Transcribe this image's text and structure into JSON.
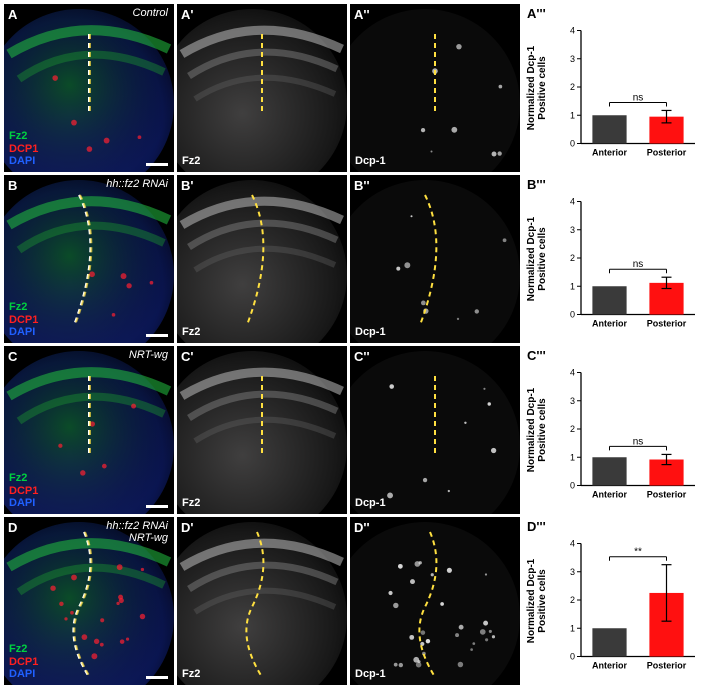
{
  "rows": [
    {
      "panels": [
        {
          "letter": "A",
          "genotype": "Control",
          "labels": [
            {
              "text": "Fz2",
              "color": "#00d040"
            },
            {
              "text": "DCP1",
              "color": "#ff2020"
            },
            {
              "text": "DAPI",
              "color": "#2060ff"
            }
          ],
          "scalebar": true,
          "color": true
        },
        {
          "letter": "A'",
          "bl": "Fz2",
          "color": false
        },
        {
          "letter": "A''",
          "bl": "Dcp-1",
          "color": false
        }
      ],
      "chart": {
        "letter": "A'''",
        "type": "bar",
        "ylabel": "Normalized Dcp-1\nPositive cells",
        "ylim": [
          0,
          4
        ],
        "ytick_step": 1,
        "categories": [
          "Anterior",
          "Posterior"
        ],
        "bars": [
          {
            "value": 1.0,
            "err": 0,
            "color": "#3a3a3a"
          },
          {
            "value": 0.95,
            "err": 0.22,
            "color": "#ff1010"
          }
        ],
        "sig": "ns",
        "bar_width": 0.6,
        "label_fontsize": 9,
        "tick_fontsize": 9
      },
      "boundary_x": 85
    },
    {
      "panels": [
        {
          "letter": "B",
          "genotype": "hh::fz2 RNAi",
          "labels": [
            {
              "text": "Fz2",
              "color": "#00d040"
            },
            {
              "text": "DCP1",
              "color": "#ff2020"
            },
            {
              "text": "DAPI",
              "color": "#2060ff"
            }
          ],
          "scalebar": true,
          "color": true
        },
        {
          "letter": "B'",
          "bl": "Fz2",
          "color": false
        },
        {
          "letter": "B''",
          "bl": "Dcp-1",
          "color": false
        }
      ],
      "chart": {
        "letter": "B'''",
        "type": "bar",
        "ylabel": "Normalized Dcp-1\nPositive cells",
        "ylim": [
          0,
          4
        ],
        "ytick_step": 1,
        "categories": [
          "Anterior",
          "Posterior"
        ],
        "bars": [
          {
            "value": 1.0,
            "err": 0,
            "color": "#3a3a3a"
          },
          {
            "value": 1.12,
            "err": 0.2,
            "color": "#ff1010"
          }
        ],
        "sig": "ns",
        "bar_width": 0.6,
        "label_fontsize": 9,
        "tick_fontsize": 9
      },
      "boundary_curved": true
    },
    {
      "panels": [
        {
          "letter": "C",
          "genotype": "NRT-wg",
          "labels": [
            {
              "text": "Fz2",
              "color": "#00d040"
            },
            {
              "text": "DCP1",
              "color": "#ff2020"
            },
            {
              "text": "DAPI",
              "color": "#2060ff"
            }
          ],
          "scalebar": true,
          "color": true
        },
        {
          "letter": "C'",
          "bl": "Fz2",
          "color": false
        },
        {
          "letter": "C''",
          "bl": "Dcp-1",
          "color": false
        }
      ],
      "chart": {
        "letter": "C'''",
        "type": "bar",
        "ylabel": "Normalized Dcp-1\nPositive cells",
        "ylim": [
          0,
          4
        ],
        "ytick_step": 1,
        "categories": [
          "Anterior",
          "Posterior"
        ],
        "bars": [
          {
            "value": 1.0,
            "err": 0,
            "color": "#3a3a3a"
          },
          {
            "value": 0.92,
            "err": 0.18,
            "color": "#ff1010"
          }
        ],
        "sig": "ns",
        "bar_width": 0.6,
        "label_fontsize": 9,
        "tick_fontsize": 9
      },
      "boundary_x": 85
    },
    {
      "panels": [
        {
          "letter": "D",
          "genotype": "hh::fz2 RNAi\nNRT-wg",
          "labels": [
            {
              "text": "Fz2",
              "color": "#00d040"
            },
            {
              "text": "DCP1",
              "color": "#ff2020"
            },
            {
              "text": "DAPI",
              "color": "#2060ff"
            }
          ],
          "scalebar": true,
          "color": true
        },
        {
          "letter": "D'",
          "bl": "Fz2",
          "color": false
        },
        {
          "letter": "D''",
          "bl": "Dcp-1",
          "color": false
        }
      ],
      "chart": {
        "letter": "D'''",
        "type": "bar",
        "ylabel": "Normalized Dcp-1\nPositive cells",
        "ylim": [
          0,
          4
        ],
        "ytick_step": 1,
        "categories": [
          "Anterior",
          "Posterior"
        ],
        "bars": [
          {
            "value": 1.0,
            "err": 0,
            "color": "#3a3a3a"
          },
          {
            "value": 2.25,
            "err": 1.0,
            "color": "#ff1010"
          }
        ],
        "sig": "**",
        "bar_width": 0.6,
        "label_fontsize": 9,
        "tick_fontsize": 9
      },
      "boundary_wavy": true
    }
  ],
  "dashed_color": "#ffe040",
  "dashed_color_white": "#ffffff"
}
